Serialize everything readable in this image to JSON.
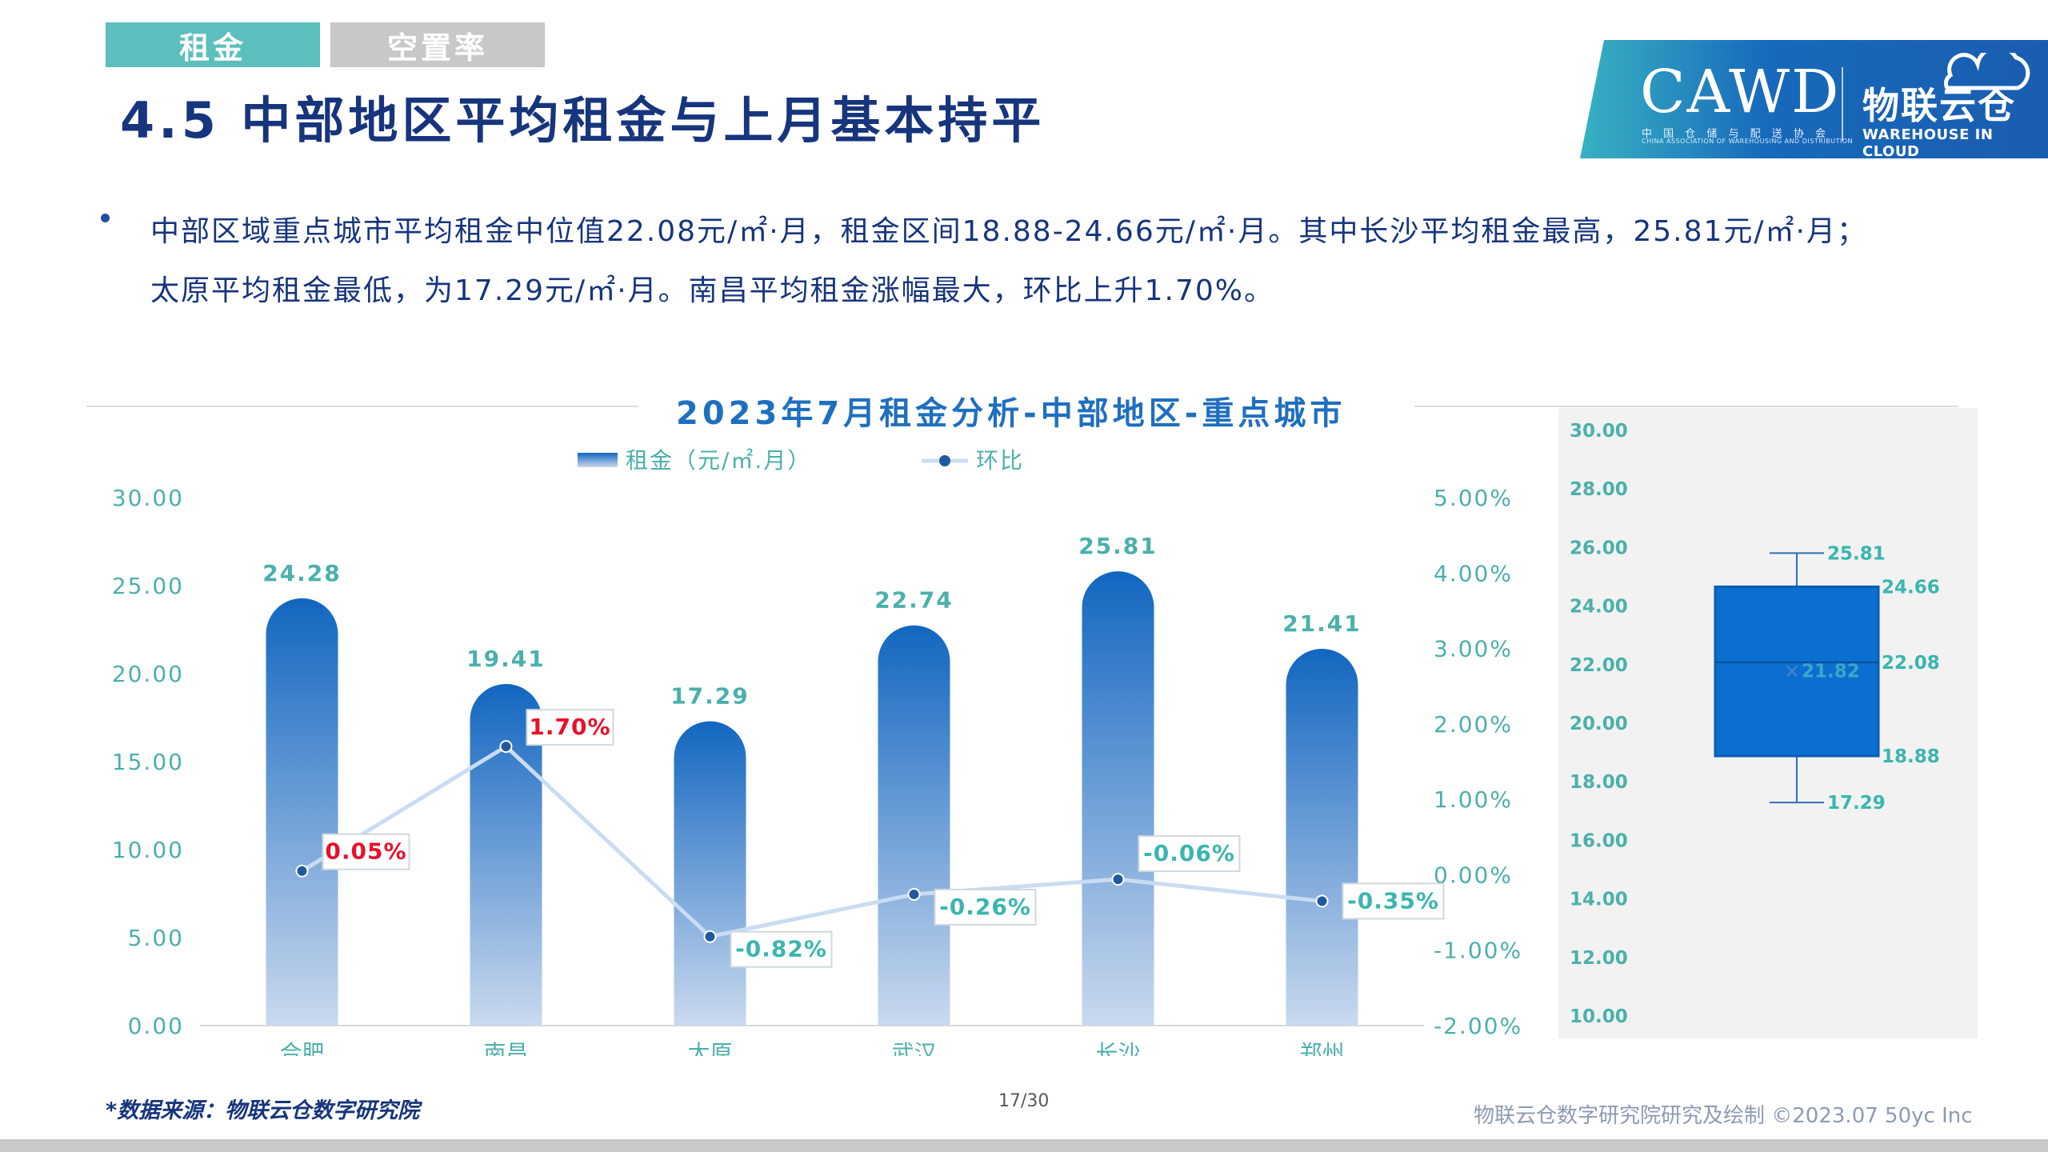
{
  "tabs": {
    "rent": "租金",
    "vacancy": "空置率"
  },
  "page_title": "4.5 中部地区平均租金与上月基本持平",
  "logo": {
    "primary": "CAWD",
    "primary_sub": "中 国 仓 储 与 配 送 协 会",
    "primary_sub_en": "CHINA ASSOCIATION OF WAREHOUSING AND DISTRIBUTION",
    "secondary_cn": "物联云仓",
    "secondary_en": "WAREHOUSE IN CLOUD"
  },
  "bullet": {
    "line1": "中部区域重点城市平均租金中位值22.08元/㎡·月，租金区间18.88-24.66元/㎡·月。其中长沙平均租金最高，25.81元/㎡·月；",
    "line2": "太原平均租金最低，为17.29元/㎡·月。南昌平均租金涨幅最大，环比上升1.70%。"
  },
  "footer": {
    "source": "*数据来源：物联云仓数字研究院",
    "page": "17/30",
    "credit": "物联云仓数字研究院研究及绘制    ©2023.07 50yc Inc"
  },
  "chart_data": [
    {
      "type": "bar",
      "title": "2023年7月租金分析-中部地区-重点城市",
      "categories": [
        "合肥",
        "南昌",
        "太原",
        "武汉",
        "长沙",
        "郑州"
      ],
      "series": [
        {
          "name": "租金（元/㎡.月）",
          "type": "bar",
          "axis": "left",
          "values": [
            24.28,
            19.41,
            17.29,
            22.74,
            25.81,
            21.41
          ],
          "value_labels": [
            "24.28",
            "19.41",
            "17.29",
            "22.74",
            "25.81",
            "21.41"
          ]
        },
        {
          "name": "环比",
          "type": "line",
          "axis": "right",
          "values": [
            0.05,
            1.7,
            -0.82,
            -0.26,
            -0.06,
            -0.35
          ],
          "value_labels": [
            "0.05%",
            "1.70%",
            "-0.82%",
            "-0.26%",
            "-0.06%",
            "-0.35%"
          ]
        }
      ],
      "y_left": {
        "min": 0,
        "max": 30,
        "ticks": [
          "0.00",
          "5.00",
          "10.00",
          "15.00",
          "20.00",
          "25.00",
          "30.00"
        ]
      },
      "y_right": {
        "min": -2,
        "max": 5,
        "ticks": [
          "-2.00%",
          "-1.00%",
          "0.00%",
          "1.00%",
          "2.00%",
          "3.00%",
          "4.00%",
          "5.00%"
        ]
      },
      "legend_position": "top",
      "grid": false,
      "colors": {
        "bar_top": "#1266c0",
        "bar_bottom": "#cad9ee",
        "line": "#c9dcf3",
        "marker": "#1f5a9e",
        "positive_label": "#e8102a",
        "negative_label": "#3ab5b0",
        "axis_text": "#4bb0ac"
      }
    },
    {
      "type": "boxplot",
      "y_axis": {
        "min": 10,
        "max": 30,
        "ticks": [
          "10.00",
          "12.00",
          "14.00",
          "16.00",
          "18.00",
          "20.00",
          "22.00",
          "24.00",
          "26.00",
          "28.00",
          "30.00"
        ]
      },
      "min": 17.29,
      "q1": 18.88,
      "median": 22.08,
      "mean": 21.82,
      "q3": 24.66,
      "max": 25.81,
      "labels": {
        "min": "17.29",
        "q1": "18.88",
        "median": "22.08",
        "mean": "21.82",
        "q3": "24.66",
        "max": "25.81"
      },
      "grid": false,
      "colors": {
        "box": "#0a6fd0",
        "box_border": "#0b5cb3",
        "label": "#3ab5b0",
        "axis_text": "#4bb0ac"
      }
    }
  ]
}
